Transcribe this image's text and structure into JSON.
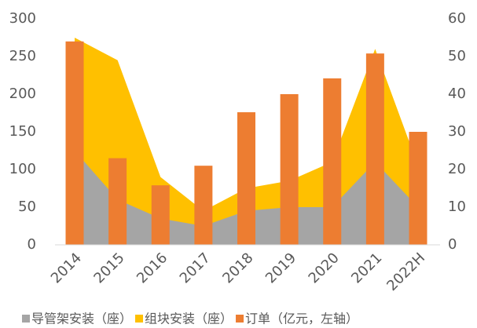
{
  "chart_data": {
    "type": "combo",
    "categories": [
      "2014",
      "2015",
      "2016",
      "2017",
      "2018",
      "2019",
      "2020",
      "2021",
      "2022H"
    ],
    "series": [
      {
        "name": "导管架安装（座）",
        "type": "area",
        "axis": "y2",
        "color": "#a5a5a5",
        "values": [
          25,
          12,
          7,
          5,
          9,
          10,
          10,
          22,
          10
        ]
      },
      {
        "name": "组块安装（座）",
        "type": "area",
        "axis": "y2",
        "color": "#ffc000",
        "values": [
          55,
          49,
          18,
          9,
          15,
          17,
          22,
          52,
          21
        ]
      },
      {
        "name": "订单（亿元，左轴）",
        "type": "bar",
        "color": "#ed7d31",
        "values": [
          270,
          115,
          79,
          105,
          176,
          200,
          221,
          254,
          150
        ]
      }
    ],
    "ylim": [
      0,
      300
    ],
    "yticks": [
      0,
      50,
      100,
      150,
      200,
      250,
      300
    ],
    "y2lim": [
      0,
      60
    ],
    "y2ticks": [
      0,
      10,
      20,
      30,
      40,
      50,
      60
    ],
    "legend": "bottom"
  }
}
